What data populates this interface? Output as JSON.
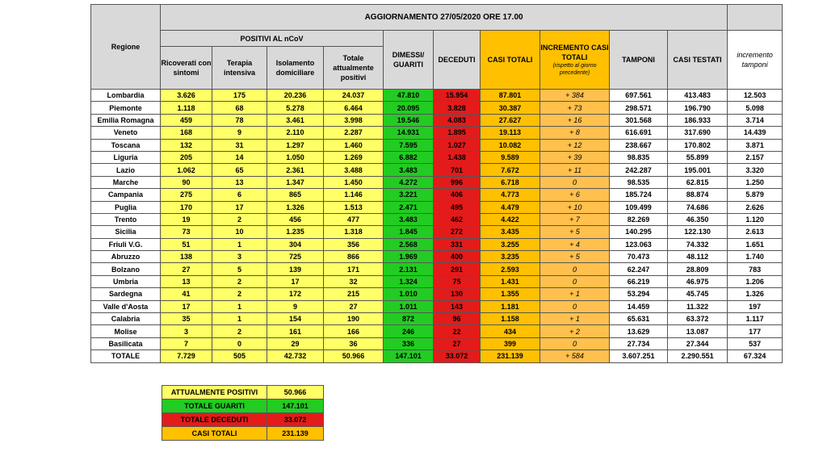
{
  "title": "AGGIORNAMENTO 27/05/2020 ORE 17.00",
  "group": "POSITIVI AL nCoV",
  "columns": [
    "Regione",
    "Ricoverati con sintomi",
    "Terapia intensiva",
    "Isolamento domiciliare",
    "Totale attualmente positivi",
    "DIMESSI/ GUARITI",
    "DECEDUTI",
    "CASI TOTALI",
    "INCREMENTO CASI TOTALI",
    "TAMPONI",
    "CASI TESTATI",
    "incremento tamponi"
  ],
  "incremento_note": "(rispetto al giorno precedente)",
  "rows": [
    [
      "Lombardia",
      "3.626",
      "175",
      "20.236",
      "24.037",
      "47.810",
      "15.954",
      "87.801",
      "+ 384",
      "697.561",
      "413.483",
      "12.503"
    ],
    [
      "Piemonte",
      "1.118",
      "68",
      "5.278",
      "6.464",
      "20.095",
      "3.828",
      "30.387",
      "+ 73",
      "298.571",
      "196.790",
      "5.098"
    ],
    [
      "Emilia Romagna",
      "459",
      "78",
      "3.461",
      "3.998",
      "19.546",
      "4.083",
      "27.627",
      "+ 16",
      "301.568",
      "186.933",
      "3.714"
    ],
    [
      "Veneto",
      "168",
      "9",
      "2.110",
      "2.287",
      "14.931",
      "1.895",
      "19.113",
      "+ 8",
      "616.691",
      "317.690",
      "14.439"
    ],
    [
      "Toscana",
      "132",
      "31",
      "1.297",
      "1.460",
      "7.595",
      "1.027",
      "10.082",
      "+ 12",
      "238.667",
      "170.802",
      "3.871"
    ],
    [
      "Liguria",
      "205",
      "14",
      "1.050",
      "1.269",
      "6.882",
      "1.438",
      "9.589",
      "+ 39",
      "98.835",
      "55.899",
      "2.157"
    ],
    [
      "Lazio",
      "1.062",
      "65",
      "2.361",
      "3.488",
      "3.483",
      "701",
      "7.672",
      "+ 11",
      "242.287",
      "195.001",
      "3.320"
    ],
    [
      "Marche",
      "90",
      "13",
      "1.347",
      "1.450",
      "4.272",
      "996",
      "6.718",
      "0",
      "98.535",
      "62.815",
      "1.250"
    ],
    [
      "Campania",
      "275",
      "6",
      "865",
      "1.146",
      "3.221",
      "406",
      "4.773",
      "+ 6",
      "185.724",
      "88.874",
      "5.879"
    ],
    [
      "Puglia",
      "170",
      "17",
      "1.326",
      "1.513",
      "2.471",
      "495",
      "4.479",
      "+ 10",
      "109.499",
      "74.686",
      "2.626"
    ],
    [
      "Trento",
      "19",
      "2",
      "456",
      "477",
      "3.483",
      "462",
      "4.422",
      "+ 7",
      "82.269",
      "46.350",
      "1.120"
    ],
    [
      "Sicilia",
      "73",
      "10",
      "1.235",
      "1.318",
      "1.845",
      "272",
      "3.435",
      "+ 5",
      "140.295",
      "122.130",
      "2.613"
    ],
    [
      "Friuli V.G.",
      "51",
      "1",
      "304",
      "356",
      "2.568",
      "331",
      "3.255",
      "+ 4",
      "123.063",
      "74.332",
      "1.651"
    ],
    [
      "Abruzzo",
      "138",
      "3",
      "725",
      "866",
      "1.969",
      "400",
      "3.235",
      "+ 5",
      "70.473",
      "48.112",
      "1.740"
    ],
    [
      "Bolzano",
      "27",
      "5",
      "139",
      "171",
      "2.131",
      "291",
      "2.593",
      "0",
      "62.247",
      "28.809",
      "783"
    ],
    [
      "Umbria",
      "13",
      "2",
      "17",
      "32",
      "1.324",
      "75",
      "1.431",
      "0",
      "66.219",
      "46.975",
      "1.206"
    ],
    [
      "Sardegna",
      "41",
      "2",
      "172",
      "215",
      "1.010",
      "130",
      "1.355",
      "+ 1",
      "53.294",
      "45.745",
      "1.326"
    ],
    [
      "Valle d'Aosta",
      "17",
      "1",
      "9",
      "27",
      "1.011",
      "143",
      "1.181",
      "0",
      "14.459",
      "11.322",
      "197"
    ],
    [
      "Calabria",
      "35",
      "1",
      "154",
      "190",
      "872",
      "96",
      "1.158",
      "+ 1",
      "65.631",
      "63.372",
      "1.117"
    ],
    [
      "Molise",
      "3",
      "2",
      "161",
      "166",
      "246",
      "22",
      "434",
      "+ 2",
      "13.629",
      "13.087",
      "177"
    ],
    [
      "Basilicata",
      "7",
      "0",
      "29",
      "36",
      "336",
      "27",
      "399",
      "0",
      "27.734",
      "27.344",
      "537"
    ]
  ],
  "total": [
    "TOTALE",
    "7.729",
    "505",
    "42.732",
    "50.966",
    "147.101",
    "33.072",
    "231.139",
    "+ 584",
    "3.607.251",
    "2.290.551",
    "67.324"
  ],
  "summary": [
    [
      "ATTUALMENTE POSITIVI",
      "50.966"
    ],
    [
      "TOTALE GUARITI",
      "147.101"
    ],
    [
      "TOTALE DECEDUTI",
      "33.072"
    ],
    [
      "CASI TOTALI",
      "231.139"
    ]
  ]
}
